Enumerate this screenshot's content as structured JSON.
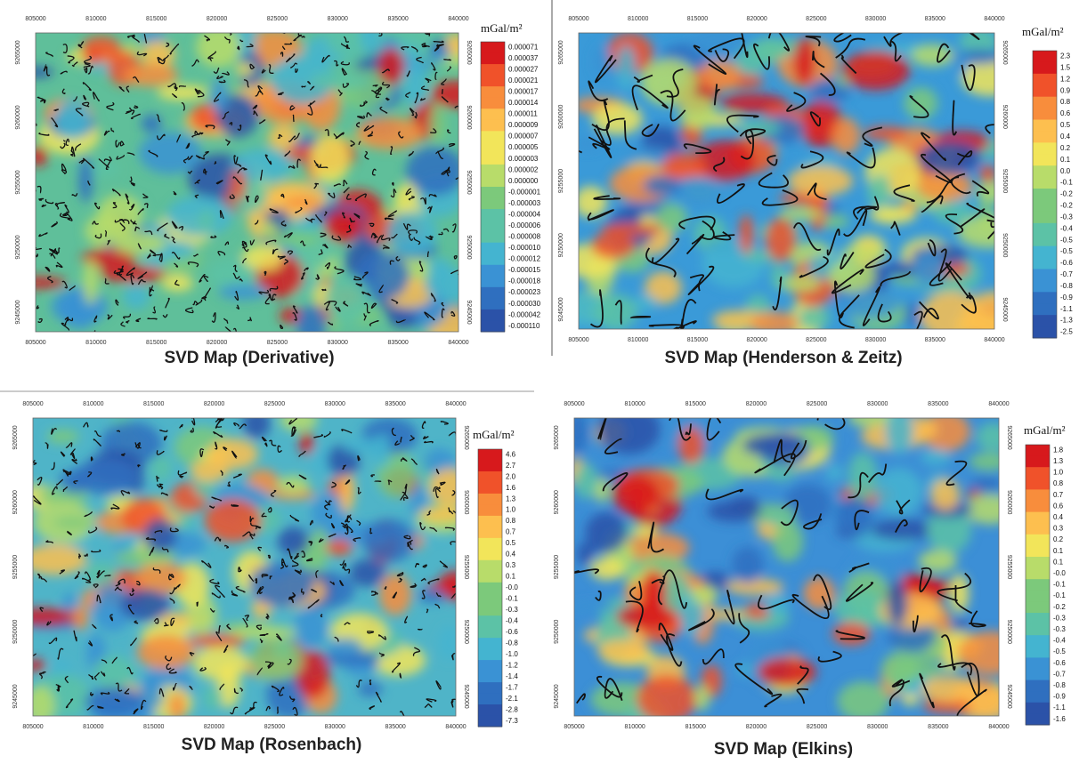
{
  "maps": [
    {
      "title": "SVD Map (Derivative)",
      "unit": "mGal/m²",
      "x_ticks": [
        "805000",
        "810000",
        "815000",
        "820000",
        "825000",
        "830000",
        "835000",
        "840000"
      ],
      "y_ticks": [
        "9265000",
        "9260000",
        "9255000",
        "9250000",
        "9245000"
      ],
      "colorbar": [
        "0.000071",
        "0.000037",
        "0.000027",
        "0.000021",
        "0.000017",
        "0.000014",
        "0.000011",
        "0.000009",
        "0.000007",
        "0.000005",
        "0.000003",
        "0.000002",
        "0.000000",
        "-0.000001",
        "-0.000003",
        "-0.000004",
        "-0.000006",
        "-0.000008",
        "-0.000010",
        "-0.000012",
        "-0.000015",
        "-0.000018",
        "-0.000023",
        "-0.000030",
        "-0.000042",
        "-0.000110"
      ]
    },
    {
      "title": "SVD Map (Henderson & Zeitz)",
      "unit": "mGal/m²",
      "x_ticks": [
        "805000",
        "810000",
        "815000",
        "820000",
        "825000",
        "830000",
        "835000",
        "840000"
      ],
      "y_ticks": [
        "9265000",
        "9260000",
        "9255000",
        "9250000",
        "9245000"
      ],
      "colorbar": [
        "2.3",
        "1.5",
        "1.2",
        "0.9",
        "0.8",
        "0.6",
        "0.5",
        "0.4",
        "0.2",
        "0.1",
        "0.0",
        "-0.1",
        "-0.2",
        "-0.2",
        "-0.3",
        "-0.4",
        "-0.5",
        "-0.5",
        "-0.6",
        "-0.7",
        "-0.8",
        "-0.9",
        "-1.1",
        "-1.3",
        "-2.5"
      ]
    },
    {
      "title": "SVD Map (Rosenbach)",
      "unit": "mGal/m²",
      "x_ticks": [
        "805000",
        "810000",
        "815000",
        "820000",
        "825000",
        "830000",
        "835000",
        "840000"
      ],
      "y_ticks": [
        "9265000",
        "9260000",
        "9255000",
        "9250000",
        "9245000"
      ],
      "colorbar": [
        "4.6",
        "2.7",
        "2.0",
        "1.6",
        "1.3",
        "1.0",
        "0.8",
        "0.7",
        "0.5",
        "0.4",
        "0.3",
        "0.1",
        "-0.0",
        "-0.1",
        "-0.3",
        "-0.4",
        "-0.6",
        "-0.8",
        "-1.0",
        "-1.2",
        "-1.4",
        "-1.7",
        "-2.1",
        "-2.8",
        "-7.3"
      ]
    },
    {
      "title": "SVD Map (Elkins)",
      "unit": "mGal/m²",
      "x_ticks": [
        "805000",
        "810000",
        "815000",
        "820000",
        "825000",
        "830000",
        "835000",
        "840000"
      ],
      "y_ticks": [
        "9265000",
        "9260000",
        "9255000",
        "9250000",
        "9245000"
      ],
      "colorbar": [
        "1.8",
        "1.3",
        "1.0",
        "0.8",
        "0.7",
        "0.6",
        "0.4",
        "0.3",
        "0.2",
        "0.1",
        "0.1",
        "-0.0",
        "-0.1",
        "-0.1",
        "-0.2",
        "-0.3",
        "-0.3",
        "-0.4",
        "-0.5",
        "-0.6",
        "-0.7",
        "-0.8",
        "-0.9",
        "-1.1",
        "-1.6"
      ]
    }
  ]
}
